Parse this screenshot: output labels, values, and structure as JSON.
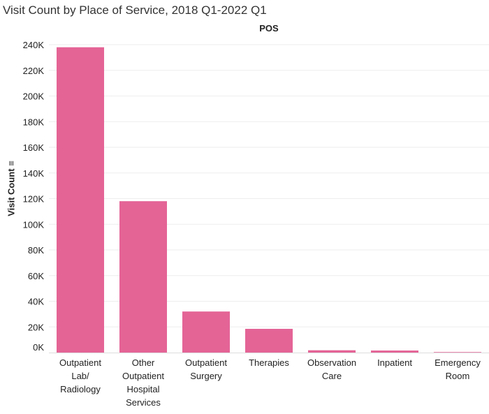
{
  "title": "Visit Count by Place of Service, 2018 Q1-2022 Q1",
  "chart_data": {
    "type": "bar",
    "header": "POS",
    "ylabel": "Visit Count ≡",
    "xlabel": "",
    "categories": [
      "Outpatient Lab/ Radiology",
      "Other Outpatient Hospital Services",
      "Outpatient Surgery",
      "Therapies",
      "Observation Care",
      "Inpatient",
      "Emergency Room"
    ],
    "category_lines": [
      [
        "Outpatient",
        "Lab/",
        "Radiology"
      ],
      [
        "Other",
        "Outpatient",
        "Hospital",
        "Services"
      ],
      [
        "Outpatient",
        "Surgery"
      ],
      [
        "Therapies"
      ],
      [
        "Observation",
        "Care"
      ],
      [
        "Inpatient"
      ],
      [
        "Emergency",
        "Room"
      ]
    ],
    "values": [
      238000,
      118000,
      32000,
      18500,
      1800,
      1600,
      400
    ],
    "ylim": [
      0,
      240000
    ],
    "ticks": [
      0,
      20000,
      40000,
      60000,
      80000,
      100000,
      120000,
      140000,
      160000,
      180000,
      200000,
      220000,
      240000
    ],
    "tick_labels": [
      "0K",
      "20K",
      "40K",
      "60K",
      "80K",
      "100K",
      "120K",
      "140K",
      "160K",
      "180K",
      "200K",
      "220K",
      "240K"
    ],
    "grid": true,
    "bar_color": "#e46496"
  }
}
